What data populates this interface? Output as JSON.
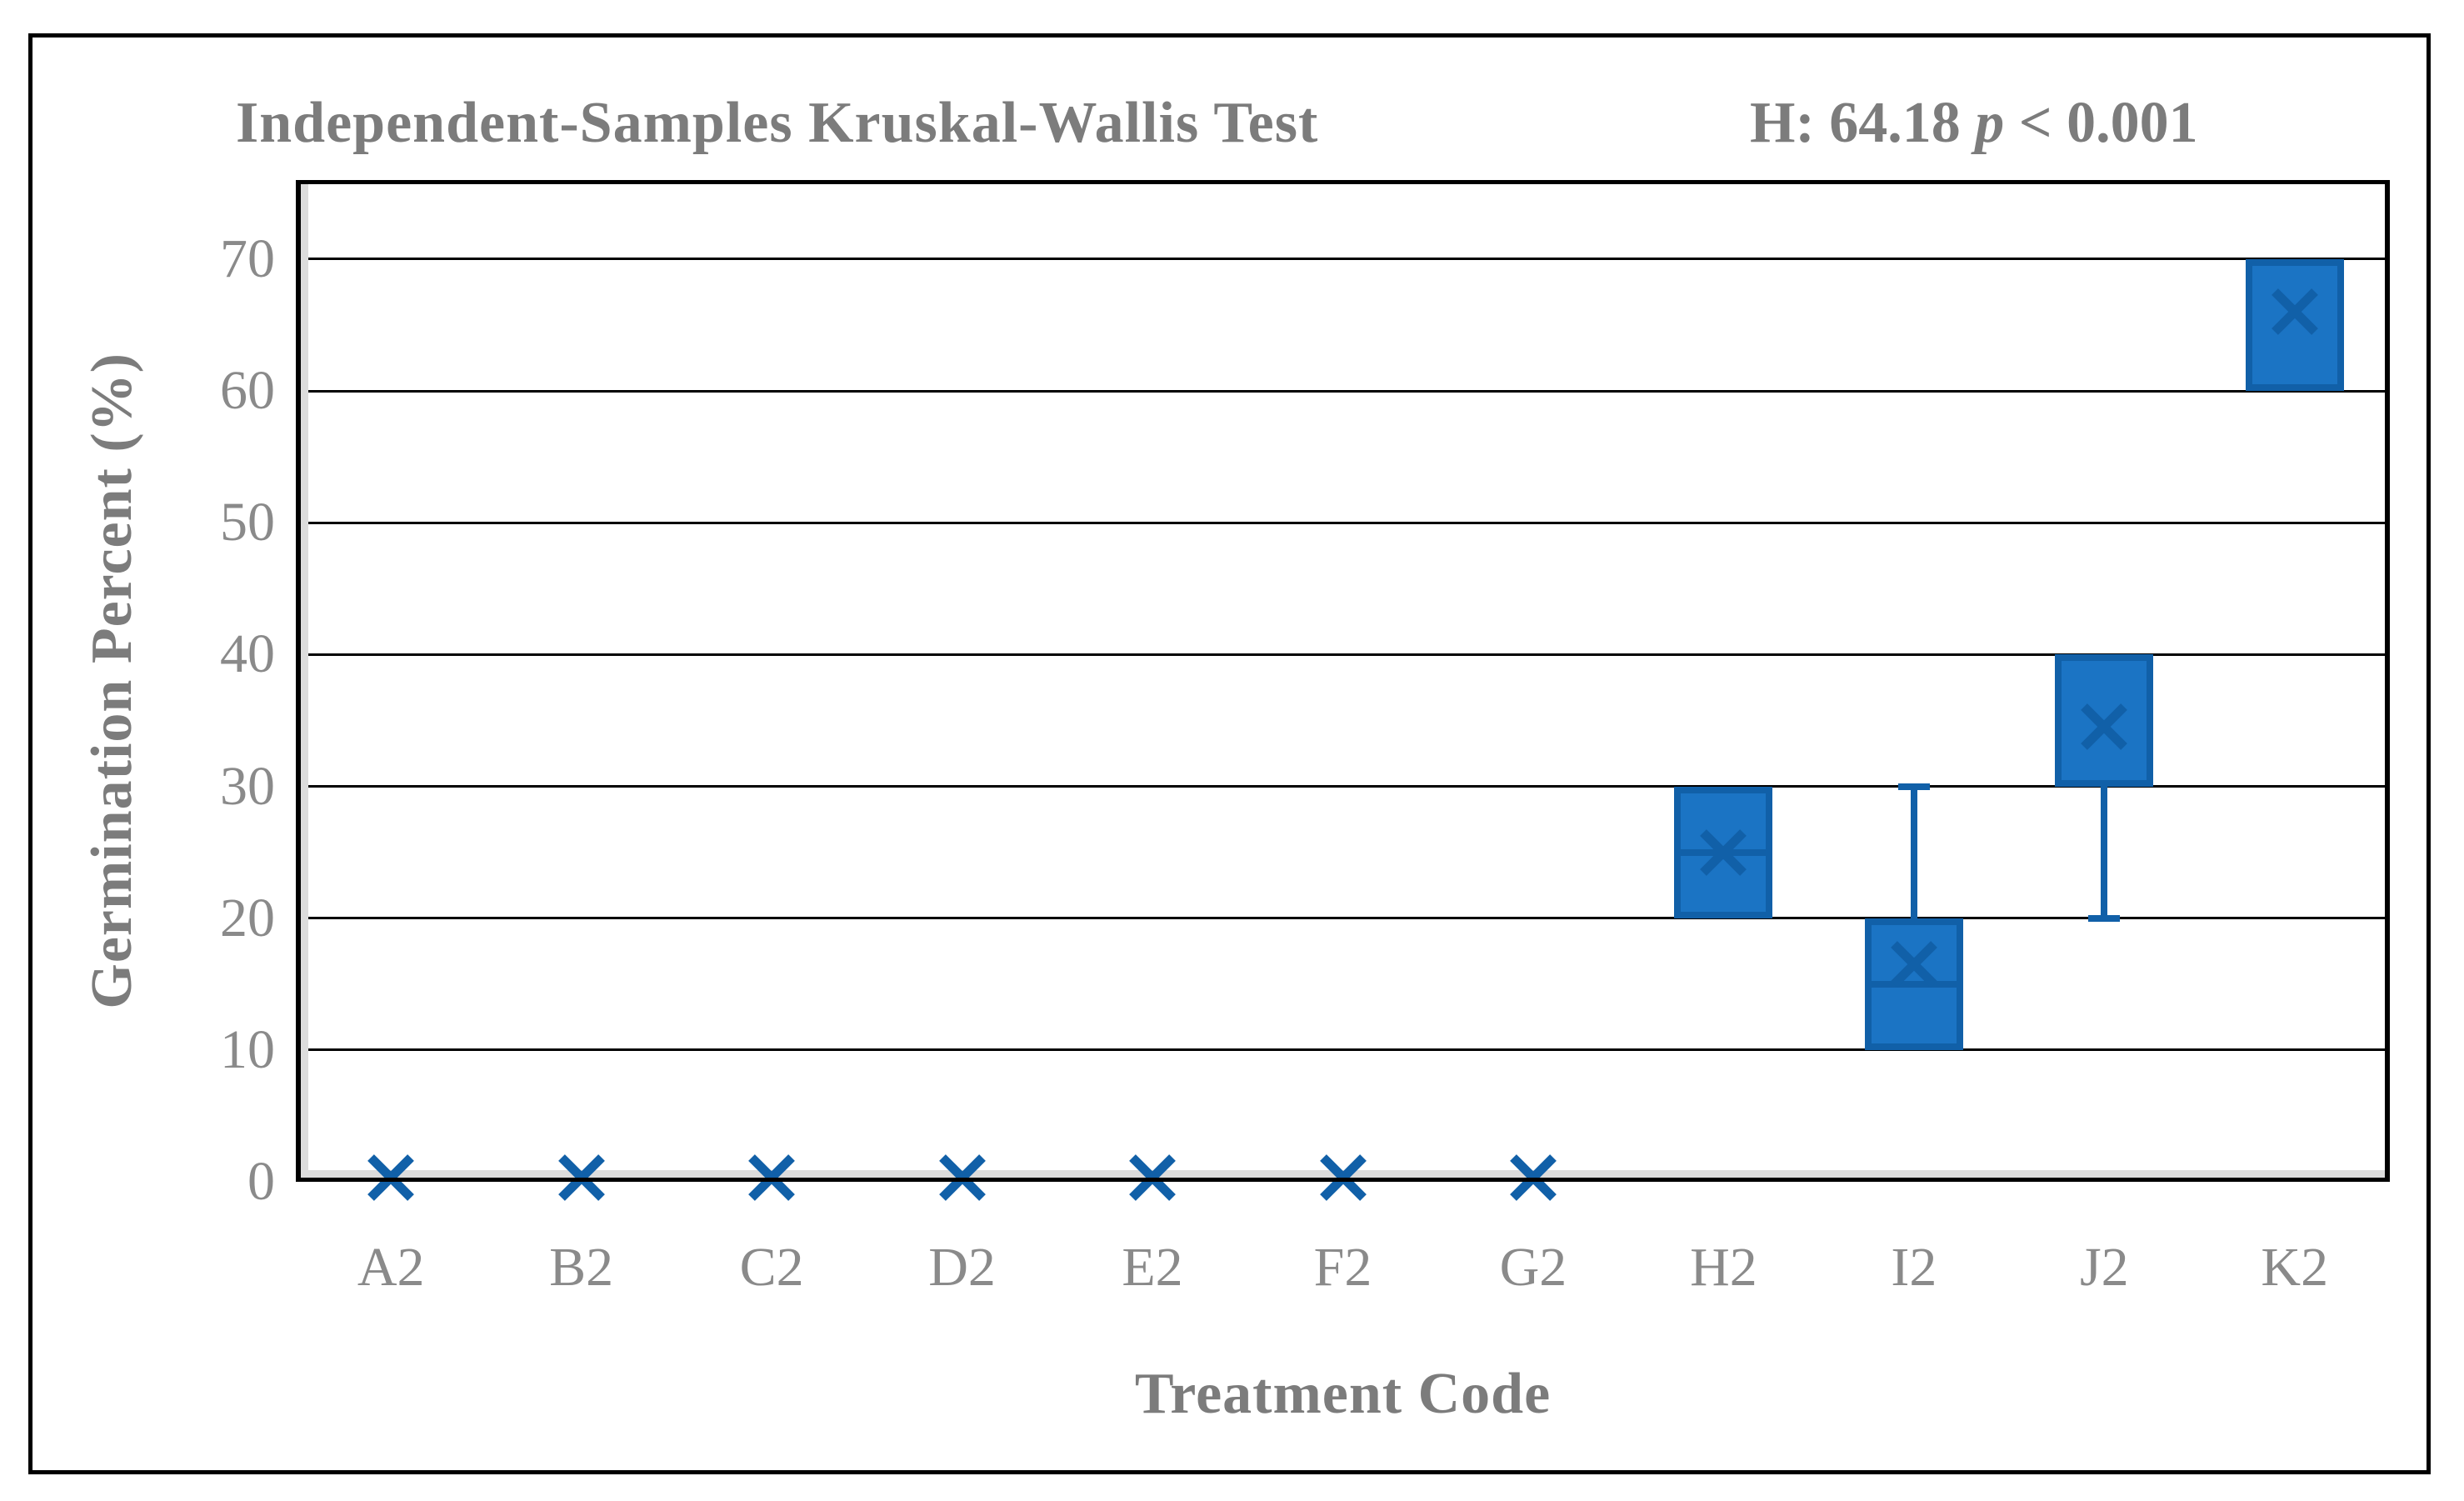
{
  "header": {
    "title": "Independent-Samples Kruskal-Wallis Test",
    "stat_prefix": "H: 64.18 ",
    "stat_p": "p",
    "stat_suffix": " < 0.001"
  },
  "colors": {
    "box_fill": "#1b74c4",
    "box_border": "#1160a8",
    "mean_marker": "#1160a8",
    "gridline": "#000000",
    "plot_border": "#000000",
    "inner_strip": "#dcdcdc",
    "title_text": "#7c7c7c",
    "tick_text": "#8a8a8a"
  },
  "chart_data": {
    "type": "boxplot",
    "title": "Independent-Samples Kruskal-Wallis Test",
    "annotation": "H: 64.18 p < 0.001",
    "xlabel": "Treatment Code",
    "ylabel": "Germination Percent (%)",
    "ylim": [
      0,
      76
    ],
    "yticks": [
      0,
      10,
      20,
      30,
      40,
      50,
      60,
      70
    ],
    "gridlines": [
      10,
      20,
      30,
      40,
      50,
      60,
      70
    ],
    "grid": true,
    "legend": false,
    "categories": [
      "A2",
      "B2",
      "C2",
      "D2",
      "E2",
      "F2",
      "G2",
      "H2",
      "I2",
      "J2",
      "K2"
    ],
    "boxes": [
      {
        "category": "A2",
        "q1": 0,
        "q3": 0,
        "median": 0,
        "mean": 0.3,
        "whisker_low": null,
        "whisker_high": null
      },
      {
        "category": "B2",
        "q1": 0,
        "q3": 0,
        "median": 0,
        "mean": 0.3,
        "whisker_low": null,
        "whisker_high": null
      },
      {
        "category": "C2",
        "q1": 0,
        "q3": 0,
        "median": 0,
        "mean": 0.3,
        "whisker_low": null,
        "whisker_high": null
      },
      {
        "category": "D2",
        "q1": 0,
        "q3": 0,
        "median": 0,
        "mean": 0.3,
        "whisker_low": null,
        "whisker_high": null
      },
      {
        "category": "E2",
        "q1": 0,
        "q3": 0,
        "median": 0,
        "mean": 0.3,
        "whisker_low": null,
        "whisker_high": null
      },
      {
        "category": "F2",
        "q1": 0,
        "q3": 0,
        "median": 0,
        "mean": 0.3,
        "whisker_low": null,
        "whisker_high": null
      },
      {
        "category": "G2",
        "q1": 0,
        "q3": 0,
        "median": 0,
        "mean": 0.3,
        "whisker_low": null,
        "whisker_high": null
      },
      {
        "category": "H2",
        "q1": 20,
        "q3": 30,
        "median": 25,
        "mean": 25,
        "whisker_low": null,
        "whisker_high": null
      },
      {
        "category": "I2",
        "q1": 10,
        "q3": 20,
        "median": 15,
        "mean": 16.5,
        "whisker_low": null,
        "whisker_high": 30
      },
      {
        "category": "J2",
        "q1": 30,
        "q3": 40,
        "median": null,
        "mean": 34.5,
        "whisker_low": 20,
        "whisker_high": null
      },
      {
        "category": "K2",
        "q1": 60,
        "q3": 70,
        "median": null,
        "mean": 66,
        "whisker_low": null,
        "whisker_high": null
      }
    ]
  }
}
